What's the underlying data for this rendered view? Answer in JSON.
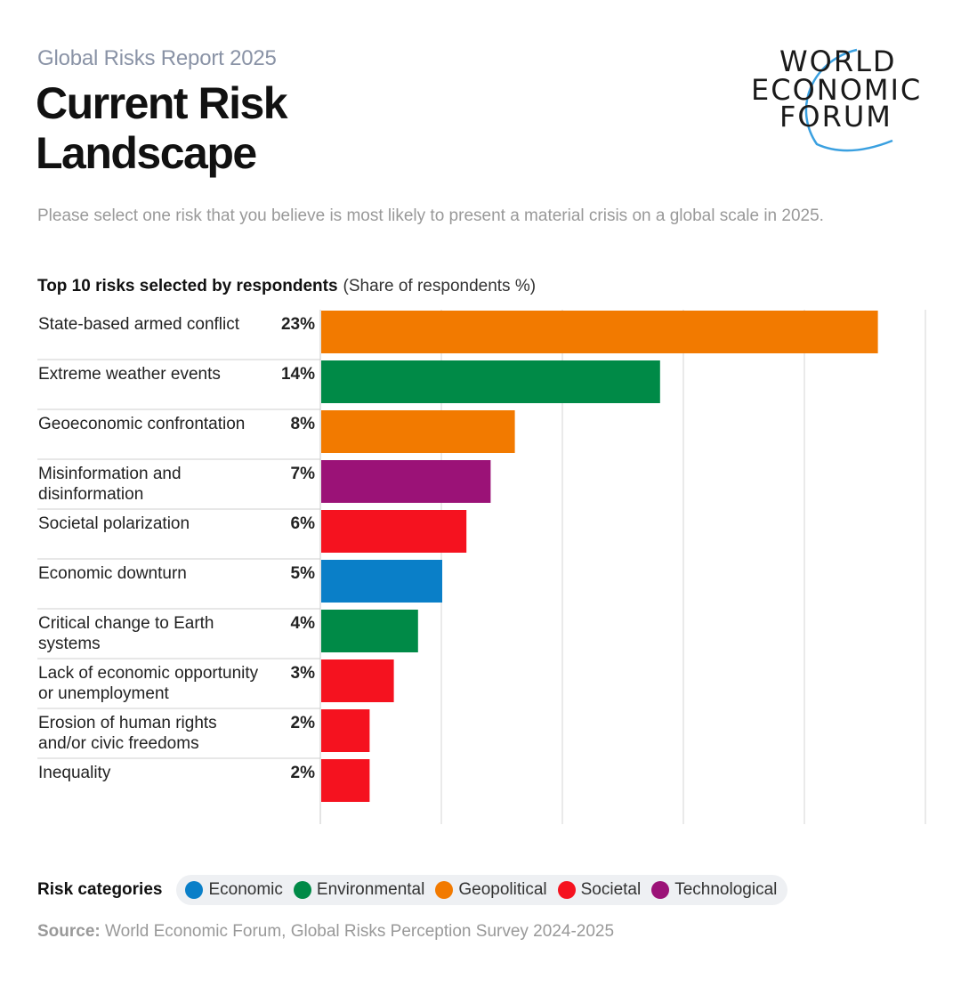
{
  "header": {
    "report": "Global Risks Report 2025",
    "title_line1": "Current Risk",
    "title_line2": "Landscape"
  },
  "logo": {
    "line1": "WORLD",
    "line2": "ECONOMIC",
    "line3": "FORUM"
  },
  "question": "Please select one risk that you believe is most likely to present a material crisis on a global scale in 2025.",
  "chart_header": {
    "bold": "Top 10 risks selected by respondents",
    "unit": "(Share of respondents %)"
  },
  "colors": {
    "Economic": "#0a7fc8",
    "Environmental": "#008a47",
    "Geopolitical": "#f27a00",
    "Societal": "#f5121f",
    "Technological": "#9b1277"
  },
  "chart_data": {
    "type": "bar",
    "orientation": "horizontal",
    "categories": [
      "State-based armed conflict",
      "Extreme weather events",
      "Geoeconomic confrontation",
      "Misinformation and disinformation",
      "Societal polarization",
      "Economic downturn",
      "Critical change to Earth systems",
      "Lack of economic opportunity or unemployment",
      "Erosion of human rights and/or civic freedoms",
      "Inequality"
    ],
    "label_lines": [
      [
        "State-based armed conflict"
      ],
      [
        "Extreme weather events"
      ],
      [
        "Geoeconomic confrontation"
      ],
      [
        "Misinformation and",
        "disinformation"
      ],
      [
        "Societal polarization"
      ],
      [
        "Economic downturn"
      ],
      [
        "Critical change to Earth",
        "systems"
      ],
      [
        "Lack of economic opportunity",
        "or unemployment"
      ],
      [
        "Erosion of human rights",
        "and/or civic freedoms"
      ],
      [
        "Inequality"
      ]
    ],
    "values": [
      23,
      14,
      8,
      7,
      6,
      5,
      4,
      3,
      2,
      2
    ],
    "value_labels": [
      "23%",
      "14%",
      "8%",
      "7%",
      "6%",
      "5%",
      "4%",
      "3%",
      "2%",
      "2%"
    ],
    "risk_category": [
      "Geopolitical",
      "Environmental",
      "Geopolitical",
      "Technological",
      "Societal",
      "Economic",
      "Environmental",
      "Societal",
      "Societal",
      "Societal"
    ],
    "xlim": [
      0,
      25
    ],
    "grid": true
  },
  "legend": {
    "title": "Risk categories",
    "items": [
      "Economic",
      "Environmental",
      "Geopolitical",
      "Societal",
      "Technological"
    ]
  },
  "source": {
    "label": "Source:",
    "text": "World Economic Forum, Global Risks Perception Survey 2024-2025"
  }
}
